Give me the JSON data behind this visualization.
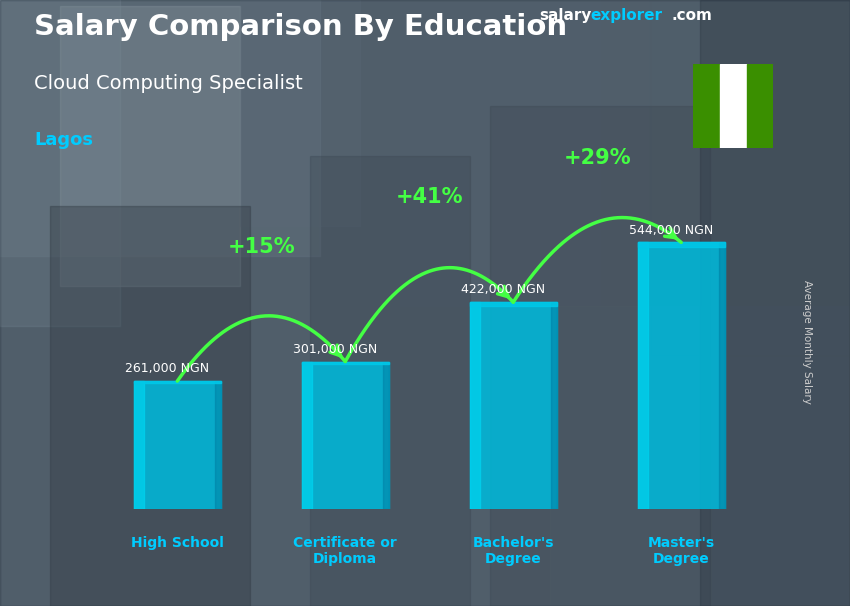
{
  "title_main": "Salary Comparison By Education",
  "subtitle": "Cloud Computing Specialist",
  "location": "Lagos",
  "watermark_salary": "salary",
  "watermark_explorer": "explorer",
  "watermark_com": ".com",
  "ylabel": "Average Monthly Salary",
  "categories": [
    "High School",
    "Certificate or\nDiploma",
    "Bachelor's\nDegree",
    "Master's\nDegree"
  ],
  "values": [
    261000,
    301000,
    422000,
    544000
  ],
  "labels": [
    "261,000 NGN",
    "301,000 NGN",
    "422,000 NGN",
    "544,000 NGN"
  ],
  "pct_changes": [
    "+15%",
    "+41%",
    "+29%"
  ],
  "bar_face_color": "#00b8d9",
  "bar_light_color": "#00d4f0",
  "bar_dark_color": "#007fa3",
  "bar_top_color": "#00c8e8",
  "title_color": "#ffffff",
  "subtitle_color": "#ffffff",
  "location_color": "#00ccff",
  "label_color": "#ffffff",
  "pct_color": "#44ff44",
  "arrow_color": "#44ff44",
  "watermark_color1": "#ffffff",
  "watermark_color2": "#00ccff",
  "xticklabel_color": "#00ccff",
  "ylabel_color": "#cccccc",
  "nigeria_green": "#3a8f00",
  "nigeria_white": "#ffffff",
  "bg_color": "#6a7a8a",
  "ylim": [
    0,
    680000
  ],
  "bar_width": 0.52
}
